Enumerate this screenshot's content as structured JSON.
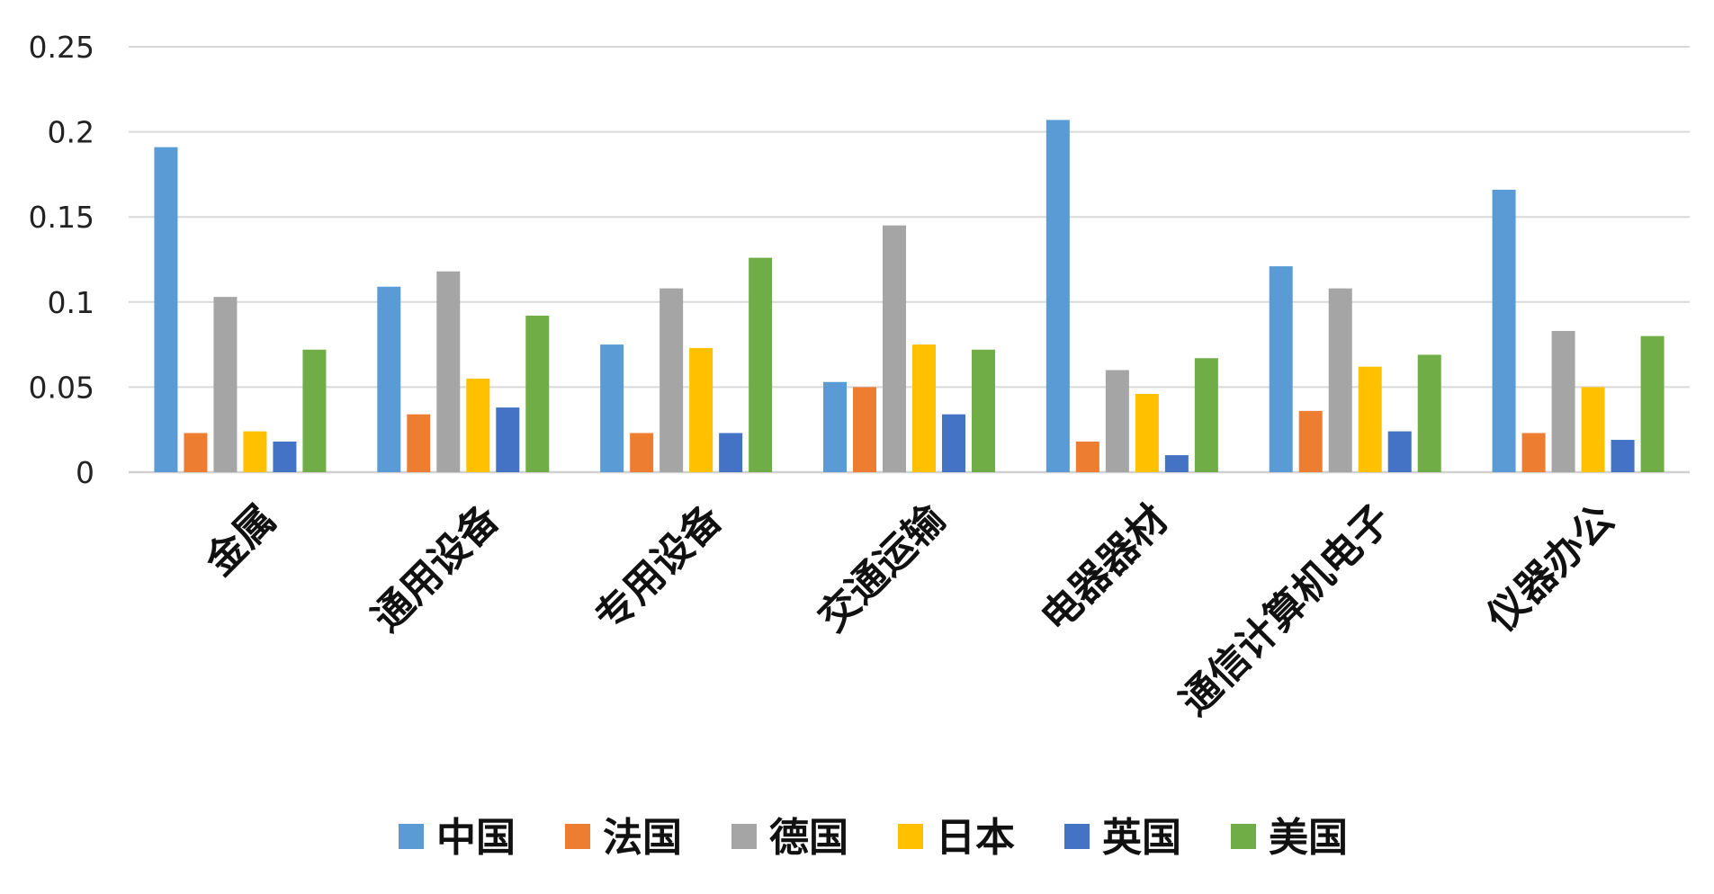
{
  "chart_data": {
    "type": "bar",
    "title": "",
    "xlabel": "",
    "ylabel": "",
    "ylim": [
      0,
      0.25
    ],
    "yticks": [
      "0",
      "0.05",
      "0.1",
      "0.15",
      "0.2",
      "0.25"
    ],
    "grid": true,
    "legend_position": "bottom",
    "categories": [
      "金属",
      "通用设备",
      "专用设备",
      "交通运输",
      "电器器材",
      "通信计算机电子",
      "仪器办公"
    ],
    "series": [
      {
        "name": "中国",
        "color": "#5b9bd5",
        "values": [
          0.191,
          0.109,
          0.075,
          0.053,
          0.207,
          0.121,
          0.166
        ]
      },
      {
        "name": "法国",
        "color": "#ed7d31",
        "values": [
          0.023,
          0.034,
          0.023,
          0.05,
          0.018,
          0.036,
          0.023
        ]
      },
      {
        "name": "德国",
        "color": "#a5a5a5",
        "values": [
          0.103,
          0.118,
          0.108,
          0.145,
          0.06,
          0.108,
          0.083
        ]
      },
      {
        "name": "日本",
        "color": "#ffc000",
        "values": [
          0.024,
          0.055,
          0.073,
          0.075,
          0.046,
          0.062,
          0.05
        ]
      },
      {
        "name": "英国",
        "color": "#4472c4",
        "values": [
          0.018,
          0.038,
          0.023,
          0.034,
          0.01,
          0.024,
          0.019
        ]
      },
      {
        "name": "美国",
        "color": "#70ad47",
        "values": [
          0.072,
          0.092,
          0.126,
          0.072,
          0.067,
          0.069,
          0.08
        ]
      }
    ]
  }
}
